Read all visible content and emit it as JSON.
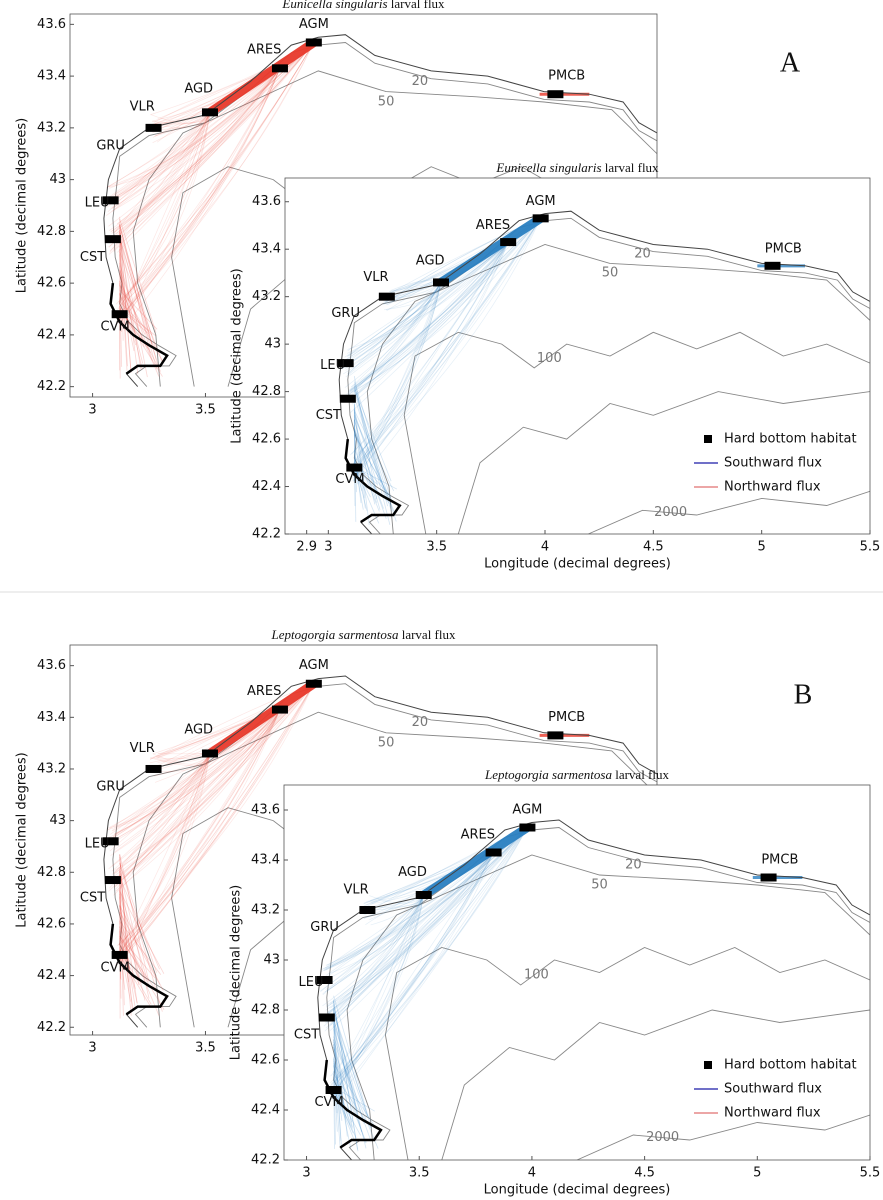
{
  "panels": [
    {
      "label": "A",
      "maps": [
        {
          "title": {
            "species": "Eunicella singularis",
            "text": "larval flux"
          },
          "ylabel": "Latitude (decimal degrees)",
          "xlim": [
            2.9,
            5.5
          ],
          "ylim": [
            42.16,
            43.64
          ],
          "xticks": [
            3,
            3.5
          ],
          "yticks": [
            42.2,
            42.4,
            42.6,
            42.8,
            43,
            43.2,
            43.4,
            43.6
          ],
          "flux_color": "#e8392b",
          "sites": [
            "AGM",
            "ARES",
            "AGD",
            "VLR",
            "GRU",
            "LEU",
            "CST",
            "CVM",
            "PMCB"
          ],
          "contour_labels": [
            "20",
            "50"
          ]
        },
        {
          "title": {
            "species": "Eunicella singularis",
            "text": "larval flux"
          },
          "ylabel": "Latitude (decimal degrees)",
          "xlabel": "Longitude (decimal degrees)",
          "xlim": [
            2.8,
            5.5
          ],
          "ylim": [
            42.2,
            43.7
          ],
          "xticks": [
            2.9,
            3,
            3.5,
            4,
            4.5,
            5,
            5.5
          ],
          "yticks": [
            42.2,
            42.4,
            42.6,
            42.8,
            43,
            43.2,
            43.4,
            43.6
          ],
          "flux_color": "#2a7fc1",
          "sites": [
            "AGM",
            "ARES",
            "AGD",
            "VLR",
            "GRU",
            "LEU",
            "CST",
            "CVM",
            "PMCB"
          ],
          "contour_labels": [
            "20",
            "50",
            "100",
            "2000"
          ],
          "legend": [
            {
              "name": "Hard bottom habitat",
              "color": "#000000"
            },
            {
              "name": "Southward flux",
              "color": "#1a1aa8"
            },
            {
              "name": "Northward flux",
              "color": "#e07070"
            }
          ]
        }
      ]
    },
    {
      "label": "B",
      "maps": [
        {
          "title": {
            "species": "Leptogorgia sarmentosa",
            "text": "larval flux"
          },
          "ylabel": "Latitude (decimal degrees)",
          "xlim": [
            2.9,
            5.5
          ],
          "ylim": [
            42.17,
            43.68
          ],
          "xticks": [
            3,
            3.5
          ],
          "yticks": [
            42.2,
            42.4,
            42.6,
            42.8,
            43,
            43.2,
            43.4,
            43.6
          ],
          "flux_color": "#e8392b",
          "sites": [
            "AGM",
            "ARES",
            "AGD",
            "VLR",
            "GRU",
            "LEU",
            "CST",
            "CVM",
            "PMCB"
          ],
          "contour_labels": [
            "20",
            "50"
          ]
        },
        {
          "title": {
            "species": "Leptogorgia sarmentosa",
            "text": "larval flux"
          },
          "ylabel": "Latitude (decimal degrees)",
          "xlabel": "Longitude (decimal degrees)",
          "xlim": [
            2.9,
            5.5
          ],
          "ylim": [
            42.2,
            43.7
          ],
          "xticks": [
            3,
            3.5,
            4,
            4.5,
            5,
            5.5
          ],
          "yticks": [
            42.2,
            42.4,
            42.6,
            42.8,
            43,
            43.2,
            43.4,
            43.6
          ],
          "flux_color": "#2a7fc1",
          "sites": [
            "AGM",
            "ARES",
            "AGD",
            "VLR",
            "GRU",
            "LEU",
            "CST",
            "CVM",
            "PMCB"
          ],
          "contour_labels": [
            "20",
            "50",
            "100",
            "2000"
          ],
          "legend": [
            {
              "name": "Hard bottom habitat",
              "color": "#000000"
            },
            {
              "name": "Southward flux",
              "color": "#1a1aa8"
            },
            {
              "name": "Northward flux",
              "color": "#e07070"
            }
          ]
        }
      ]
    }
  ]
}
